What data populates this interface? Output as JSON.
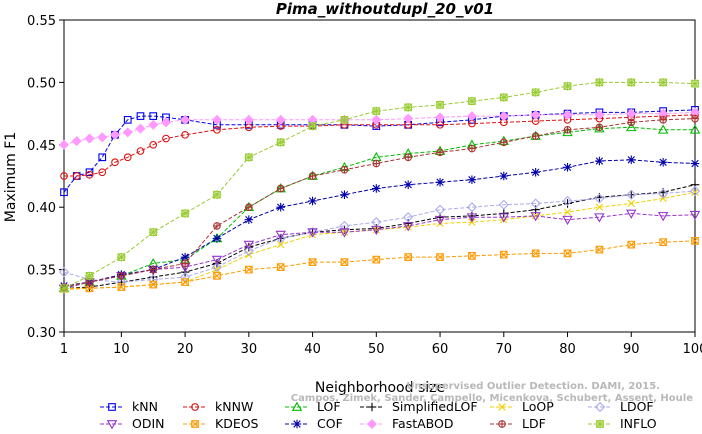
{
  "chart_data": {
    "type": "line",
    "title": "Pima_withoutdupl_20_v01",
    "xlabel": "Neighborhood size",
    "ylabel": "Maximum F1",
    "xlim": [
      1,
      100
    ],
    "ylim": [
      0.3,
      0.55
    ],
    "xticks": [
      1,
      10,
      20,
      30,
      40,
      50,
      60,
      70,
      80,
      90,
      100
    ],
    "yticks": [
      0.3,
      0.35,
      0.4,
      0.45,
      0.5,
      0.55
    ],
    "grid": false,
    "legend_position": "bottom",
    "watermark": [
      "Campos, Zimek, Sander, Campello, Micenkova, Schubert, Assent, Houle",
      "Unsupervised Outlier Detection. DAMI, 2015."
    ],
    "series": [
      {
        "name": "kNN",
        "color": "#0000ee",
        "marker": "square",
        "x": [
          1,
          3,
          5,
          7,
          9,
          11,
          13,
          15,
          17,
          20,
          25,
          30,
          35,
          40,
          45,
          50,
          55,
          60,
          65,
          70,
          75,
          80,
          85,
          90,
          95,
          100
        ],
        "y": [
          0.412,
          0.425,
          0.428,
          0.44,
          0.458,
          0.47,
          0.473,
          0.473,
          0.472,
          0.47,
          0.466,
          0.466,
          0.466,
          0.466,
          0.466,
          0.465,
          0.466,
          0.468,
          0.47,
          0.473,
          0.474,
          0.475,
          0.476,
          0.476,
          0.477,
          0.478
        ]
      },
      {
        "name": "kNNW",
        "color": "#dd1111",
        "marker": "circle",
        "x": [
          1,
          3,
          5,
          7,
          9,
          11,
          13,
          15,
          17,
          20,
          25,
          30,
          35,
          40,
          45,
          50,
          55,
          60,
          65,
          70,
          75,
          80,
          85,
          90,
          95,
          100
        ],
        "y": [
          0.425,
          0.425,
          0.426,
          0.428,
          0.436,
          0.44,
          0.445,
          0.45,
          0.455,
          0.458,
          0.462,
          0.464,
          0.465,
          0.465,
          0.466,
          0.466,
          0.466,
          0.466,
          0.467,
          0.468,
          0.469,
          0.47,
          0.471,
          0.472,
          0.473,
          0.474
        ]
      },
      {
        "name": "LOF",
        "color": "#00bb00",
        "marker": "triangle",
        "x": [
          1,
          5,
          10,
          15,
          20,
          25,
          30,
          35,
          40,
          45,
          50,
          55,
          60,
          65,
          70,
          75,
          80,
          85,
          90,
          95,
          100
        ],
        "y": [
          0.335,
          0.34,
          0.345,
          0.355,
          0.358,
          0.375,
          0.4,
          0.415,
          0.425,
          0.432,
          0.44,
          0.443,
          0.445,
          0.45,
          0.453,
          0.457,
          0.46,
          0.463,
          0.464,
          0.462,
          0.462
        ]
      },
      {
        "name": "SimplifiedLOF",
        "color": "#000000",
        "marker": "plus",
        "x": [
          1,
          5,
          10,
          15,
          20,
          25,
          30,
          35,
          40,
          45,
          50,
          55,
          60,
          65,
          70,
          75,
          80,
          85,
          90,
          95,
          100
        ],
        "y": [
          0.335,
          0.336,
          0.34,
          0.344,
          0.348,
          0.355,
          0.368,
          0.375,
          0.38,
          0.382,
          0.383,
          0.387,
          0.392,
          0.393,
          0.395,
          0.398,
          0.403,
          0.408,
          0.41,
          0.412,
          0.418
        ]
      },
      {
        "name": "LoOP",
        "color": "#f2d000",
        "marker": "x",
        "x": [
          1,
          5,
          10,
          15,
          20,
          25,
          30,
          35,
          40,
          45,
          50,
          55,
          60,
          65,
          70,
          75,
          80,
          85,
          90,
          95,
          100
        ],
        "y": [
          0.334,
          0.335,
          0.336,
          0.338,
          0.34,
          0.35,
          0.362,
          0.37,
          0.378,
          0.38,
          0.382,
          0.384,
          0.387,
          0.388,
          0.39,
          0.393,
          0.396,
          0.4,
          0.403,
          0.407,
          0.412
        ]
      },
      {
        "name": "LDOF",
        "color": "#aaaaee",
        "marker": "diamond",
        "x": [
          1,
          5,
          10,
          15,
          20,
          25,
          30,
          35,
          40,
          45,
          50,
          55,
          60,
          65,
          70,
          75,
          80,
          85,
          90,
          95,
          100
        ],
        "y": [
          0.348,
          0.342,
          0.34,
          0.342,
          0.344,
          0.352,
          0.365,
          0.375,
          0.38,
          0.385,
          0.388,
          0.392,
          0.398,
          0.4,
          0.402,
          0.403,
          0.405,
          0.407,
          0.41,
          0.411,
          0.413
        ]
      },
      {
        "name": "ODIN",
        "color": "#9933cc",
        "marker": "triangle-down",
        "x": [
          1,
          5,
          10,
          15,
          20,
          25,
          30,
          35,
          40,
          45,
          50,
          55,
          60,
          65,
          70,
          75,
          80,
          85,
          90,
          95,
          100
        ],
        "y": [
          0.335,
          0.34,
          0.345,
          0.35,
          0.352,
          0.358,
          0.37,
          0.378,
          0.38,
          0.38,
          0.382,
          0.385,
          0.39,
          0.392,
          0.392,
          0.393,
          0.39,
          0.392,
          0.395,
          0.393,
          0.394
        ]
      },
      {
        "name": "KDEOS",
        "color": "#ff9900",
        "marker": "square-x",
        "x": [
          1,
          5,
          10,
          15,
          20,
          25,
          30,
          35,
          40,
          45,
          50,
          55,
          60,
          65,
          70,
          75,
          80,
          85,
          90,
          95,
          100
        ],
        "y": [
          0.335,
          0.335,
          0.336,
          0.338,
          0.34,
          0.345,
          0.35,
          0.352,
          0.356,
          0.356,
          0.358,
          0.36,
          0.36,
          0.361,
          0.362,
          0.363,
          0.363,
          0.366,
          0.37,
          0.372,
          0.373
        ]
      },
      {
        "name": "COF",
        "color": "#0000aa",
        "marker": "star",
        "x": [
          1,
          5,
          10,
          15,
          20,
          25,
          30,
          35,
          40,
          45,
          50,
          55,
          60,
          65,
          70,
          75,
          80,
          85,
          90,
          95,
          100
        ],
        "y": [
          0.337,
          0.34,
          0.346,
          0.35,
          0.36,
          0.375,
          0.39,
          0.4,
          0.405,
          0.41,
          0.415,
          0.418,
          0.42,
          0.422,
          0.425,
          0.428,
          0.432,
          0.437,
          0.438,
          0.436,
          0.435
        ]
      },
      {
        "name": "FastABOD",
        "color": "#ff99ff",
        "marker": "diamond-filled",
        "x": [
          1,
          3,
          5,
          7,
          9,
          11,
          13,
          15,
          17,
          20,
          25,
          30,
          35,
          40,
          45,
          50,
          55,
          60,
          65,
          70,
          75,
          80,
          85,
          90,
          95,
          100
        ],
        "y": [
          0.45,
          0.453,
          0.455,
          0.456,
          0.458,
          0.46,
          0.463,
          0.466,
          0.468,
          0.47,
          0.47,
          0.47,
          0.47,
          0.47,
          0.47,
          0.47,
          0.471,
          0.472,
          0.473,
          0.473,
          0.474,
          0.474,
          0.474,
          0.475,
          0.475,
          0.476
        ]
      },
      {
        "name": "LDF",
        "color": "#aa3333",
        "marker": "circle-plus",
        "x": [
          1,
          5,
          10,
          15,
          20,
          25,
          30,
          35,
          40,
          45,
          50,
          55,
          60,
          65,
          70,
          75,
          80,
          85,
          90,
          95,
          100
        ],
        "y": [
          0.336,
          0.34,
          0.345,
          0.35,
          0.355,
          0.385,
          0.4,
          0.415,
          0.425,
          0.43,
          0.435,
          0.44,
          0.444,
          0.447,
          0.452,
          0.457,
          0.462,
          0.464,
          0.468,
          0.47,
          0.471
        ]
      },
      {
        "name": "INFLO",
        "color": "#99cc33",
        "marker": "star-square",
        "x": [
          1,
          5,
          10,
          15,
          20,
          25,
          30,
          35,
          40,
          45,
          50,
          55,
          60,
          65,
          70,
          75,
          80,
          85,
          90,
          95,
          100
        ],
        "y": [
          0.335,
          0.345,
          0.36,
          0.38,
          0.395,
          0.41,
          0.44,
          0.452,
          0.465,
          0.47,
          0.477,
          0.48,
          0.482,
          0.485,
          0.488,
          0.492,
          0.497,
          0.5,
          0.5,
          0.5,
          0.499
        ]
      }
    ]
  }
}
